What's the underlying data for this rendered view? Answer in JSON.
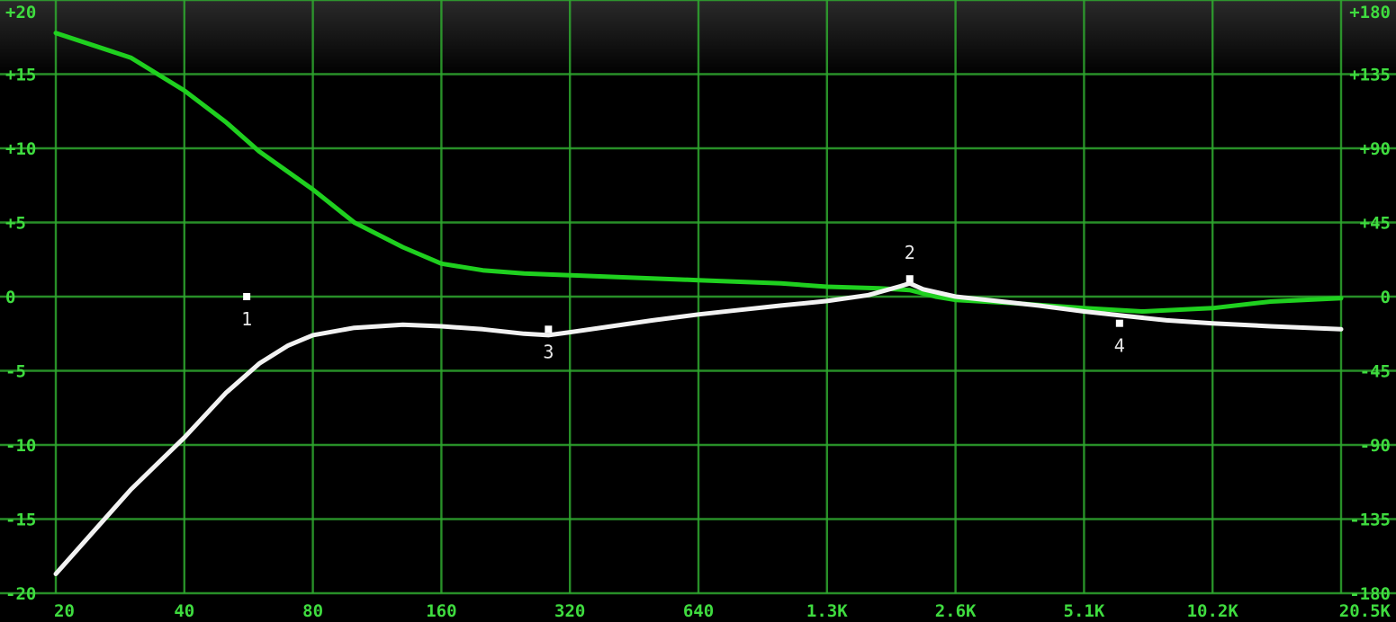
{
  "chart_data": {
    "type": "line",
    "title": "",
    "xlabel": "",
    "ylabel": "",
    "x_scale": "log",
    "x_ticks": [
      {
        "value": 20,
        "label": "20"
      },
      {
        "value": 40,
        "label": "40"
      },
      {
        "value": 80,
        "label": "80"
      },
      {
        "value": 160,
        "label": "160"
      },
      {
        "value": 320,
        "label": "320"
      },
      {
        "value": 640,
        "label": "640"
      },
      {
        "value": 1280,
        "label": "1.3K"
      },
      {
        "value": 2560,
        "label": "2.6K"
      },
      {
        "value": 5120,
        "label": "5.1K"
      },
      {
        "value": 10240,
        "label": "10.2K"
      },
      {
        "value": 20480,
        "label": "20.5K"
      }
    ],
    "y_left": {
      "unit": "dB",
      "range": [
        -20,
        20
      ],
      "ticks": [
        {
          "value": 20,
          "label": "+20"
        },
        {
          "value": 15,
          "label": "+15"
        },
        {
          "value": 10,
          "label": "+10"
        },
        {
          "value": 5,
          "label": "+5"
        },
        {
          "value": 0,
          "label": "0"
        },
        {
          "value": -5,
          "label": "-5"
        },
        {
          "value": -10,
          "label": "-10"
        },
        {
          "value": -15,
          "label": "-15"
        },
        {
          "value": -20,
          "label": "-20"
        }
      ]
    },
    "y_right": {
      "unit": "degrees",
      "range": [
        -180,
        180
      ],
      "ticks": [
        {
          "value": 180,
          "label": "+180"
        },
        {
          "value": 135,
          "label": "+135"
        },
        {
          "value": 90,
          "label": "+90"
        },
        {
          "value": 45,
          "label": "+45"
        },
        {
          "value": 0,
          "label": "0"
        },
        {
          "value": -45,
          "label": "-45"
        },
        {
          "value": -90,
          "label": "-90"
        },
        {
          "value": -135,
          "label": "-135"
        },
        {
          "value": -180,
          "label": "-180"
        }
      ]
    },
    "grid": true,
    "series": [
      {
        "axis": "left",
        "color": "#f2f2f2",
        "points": [
          [
            20,
            -18.7
          ],
          [
            30,
            -13
          ],
          [
            40,
            -9.5
          ],
          [
            50,
            -6.5
          ],
          [
            60,
            -4.5
          ],
          [
            70,
            -3.3
          ],
          [
            80,
            -2.6
          ],
          [
            100,
            -2.1
          ],
          [
            130,
            -1.9
          ],
          [
            160,
            -2
          ],
          [
            200,
            -2.2
          ],
          [
            250,
            -2.5
          ],
          [
            285,
            -2.6
          ],
          [
            320,
            -2.4
          ],
          [
            400,
            -2
          ],
          [
            500,
            -1.6
          ],
          [
            640,
            -1.2
          ],
          [
            800,
            -0.9
          ],
          [
            1000,
            -0.6
          ],
          [
            1280,
            -0.3
          ],
          [
            1600,
            0.1
          ],
          [
            1900,
            0.7
          ],
          [
            2000,
            0.9
          ],
          [
            2150,
            0.5
          ],
          [
            2560,
            0
          ],
          [
            3200,
            -0.3
          ],
          [
            4000,
            -0.6
          ],
          [
            5120,
            -1
          ],
          [
            6400,
            -1.3
          ],
          [
            8000,
            -1.6
          ],
          [
            10240,
            -1.8
          ],
          [
            14000,
            -2
          ],
          [
            20480,
            -2.2
          ]
        ]
      },
      {
        "axis": "right",
        "color": "#1fd01f",
        "points": [
          [
            20,
            160
          ],
          [
            30,
            145
          ],
          [
            40,
            125
          ],
          [
            50,
            106
          ],
          [
            60,
            88
          ],
          [
            80,
            65
          ],
          [
            100,
            45
          ],
          [
            130,
            30
          ],
          [
            160,
            20
          ],
          [
            200,
            16
          ],
          [
            250,
            14
          ],
          [
            320,
            13
          ],
          [
            400,
            12
          ],
          [
            640,
            10
          ],
          [
            1000,
            8
          ],
          [
            1280,
            6
          ],
          [
            1700,
            5
          ],
          [
            2000,
            4
          ],
          [
            2300,
            0
          ],
          [
            2560,
            -2
          ],
          [
            3500,
            -4
          ],
          [
            5120,
            -7
          ],
          [
            7000,
            -9
          ],
          [
            10240,
            -7
          ],
          [
            14000,
            -3
          ],
          [
            20480,
            -1
          ]
        ]
      }
    ],
    "band_markers": [
      {
        "label": "1",
        "freq": 56,
        "db": 0
      },
      {
        "label": "2",
        "freq": 2000,
        "db": 1.2
      },
      {
        "label": "3",
        "freq": 285,
        "db": -2.2
      },
      {
        "label": "4",
        "freq": 6200,
        "db": -1.8
      }
    ]
  }
}
